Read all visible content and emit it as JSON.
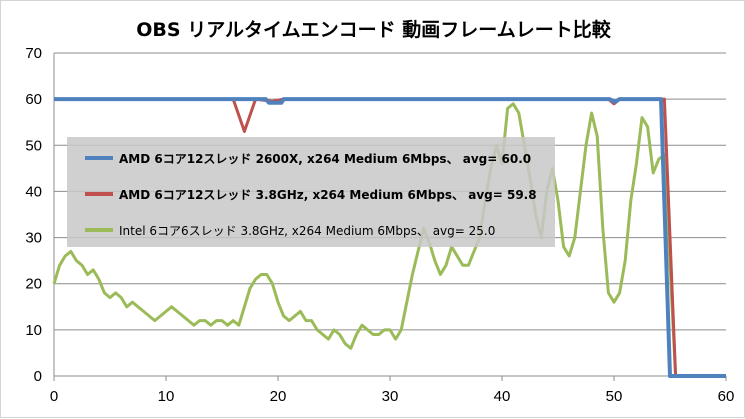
{
  "chart_data": {
    "type": "line",
    "title": "OBS リアルタイムエンコード 動画フレームレート比較",
    "xlim": [
      0,
      60
    ],
    "ylim": [
      0,
      70
    ],
    "xticks": [
      0,
      10,
      20,
      30,
      40,
      50,
      60
    ],
    "yticks": [
      0,
      10,
      20,
      30,
      40,
      50,
      60,
      70
    ],
    "grid": "horizontal",
    "legend_position": "upper-left-inside",
    "series": [
      {
        "name": "AMD 6コア12スレッド 2600X, x264 Medium 6Mbps、 avg= 60.0",
        "color": "#4f81bd",
        "points": [
          [
            0,
            60
          ],
          [
            18.9,
            60
          ],
          [
            19.2,
            59.2
          ],
          [
            20.3,
            59.2
          ],
          [
            20.5,
            60
          ],
          [
            49.6,
            60
          ],
          [
            50.1,
            59.4
          ],
          [
            50.5,
            60
          ],
          [
            54.2,
            60
          ],
          [
            55,
            0
          ],
          [
            60,
            0
          ]
        ]
      },
      {
        "name": "AMD 6コア12スレッド 3.8GHz, x264 Medium 6Mbps、 avg= 59.8",
        "color": "#c0504d",
        "points": [
          [
            0,
            60
          ],
          [
            16,
            60
          ],
          [
            17,
            53
          ],
          [
            18,
            60
          ],
          [
            19.5,
            59.5
          ],
          [
            20.5,
            60
          ],
          [
            49.5,
            60
          ],
          [
            50,
            59
          ],
          [
            50.5,
            60
          ],
          [
            54.5,
            60
          ],
          [
            55.5,
            0
          ],
          [
            60,
            0
          ]
        ]
      },
      {
        "name": "Intel 6コア6スレッド 3.8GHz, x264 Medium 6Mbps、 avg= 25.0",
        "color": "#9bbb59",
        "points": [
          [
            0,
            20
          ],
          [
            0.5,
            24
          ],
          [
            1,
            26
          ],
          [
            1.5,
            27
          ],
          [
            2,
            25
          ],
          [
            2.5,
            24
          ],
          [
            3,
            22
          ],
          [
            3.5,
            23
          ],
          [
            4,
            21
          ],
          [
            4.5,
            18
          ],
          [
            5,
            17
          ],
          [
            5.5,
            18
          ],
          [
            6,
            17
          ],
          [
            6.5,
            15
          ],
          [
            7,
            16
          ],
          [
            7.5,
            15
          ],
          [
            8,
            14
          ],
          [
            8.5,
            13
          ],
          [
            9,
            12
          ],
          [
            9.5,
            13
          ],
          [
            10,
            14
          ],
          [
            10.5,
            15
          ],
          [
            11,
            14
          ],
          [
            11.5,
            13
          ],
          [
            12,
            12
          ],
          [
            12.5,
            11
          ],
          [
            13,
            12
          ],
          [
            13.5,
            12
          ],
          [
            14,
            11
          ],
          [
            14.5,
            12
          ],
          [
            15,
            12
          ],
          [
            15.5,
            11
          ],
          [
            16,
            12
          ],
          [
            16.5,
            11
          ],
          [
            17,
            15
          ],
          [
            17.5,
            19
          ],
          [
            18,
            21
          ],
          [
            18.5,
            22
          ],
          [
            19,
            22
          ],
          [
            19.5,
            20
          ],
          [
            20,
            16
          ],
          [
            20.5,
            13
          ],
          [
            21,
            12
          ],
          [
            21.5,
            13
          ],
          [
            22,
            14
          ],
          [
            22.5,
            12
          ],
          [
            23,
            12
          ],
          [
            23.5,
            10
          ],
          [
            24,
            9
          ],
          [
            24.5,
            8
          ],
          [
            25,
            10
          ],
          [
            25.5,
            9
          ],
          [
            26,
            7
          ],
          [
            26.5,
            6
          ],
          [
            27,
            9
          ],
          [
            27.5,
            11
          ],
          [
            28,
            10
          ],
          [
            28.5,
            9
          ],
          [
            29,
            9
          ],
          [
            29.5,
            10
          ],
          [
            30,
            10
          ],
          [
            30.5,
            8
          ],
          [
            31,
            10
          ],
          [
            31.5,
            16
          ],
          [
            32,
            22
          ],
          [
            32.5,
            27
          ],
          [
            33,
            32
          ],
          [
            33.5,
            29
          ],
          [
            34,
            25
          ],
          [
            34.5,
            22
          ],
          [
            35,
            24
          ],
          [
            35.5,
            28
          ],
          [
            36,
            26
          ],
          [
            36.5,
            24
          ],
          [
            37,
            24
          ],
          [
            37.5,
            27
          ],
          [
            38,
            30
          ],
          [
            38.5,
            38
          ],
          [
            39,
            45
          ],
          [
            39.5,
            50
          ],
          [
            40,
            46
          ],
          [
            40.5,
            58
          ],
          [
            41,
            59
          ],
          [
            41.5,
            57
          ],
          [
            42,
            50
          ],
          [
            42.5,
            43
          ],
          [
            43,
            35
          ],
          [
            43.5,
            30
          ],
          [
            44,
            40
          ],
          [
            44.5,
            45
          ],
          [
            45,
            38
          ],
          [
            45.5,
            28
          ],
          [
            46,
            26
          ],
          [
            46.5,
            30
          ],
          [
            47,
            40
          ],
          [
            47.5,
            50
          ],
          [
            48,
            57
          ],
          [
            48.5,
            52
          ],
          [
            49,
            32
          ],
          [
            49.5,
            18
          ],
          [
            50,
            16
          ],
          [
            50.5,
            18
          ],
          [
            51,
            25
          ],
          [
            51.5,
            38
          ],
          [
            52,
            46
          ],
          [
            52.5,
            56
          ],
          [
            53,
            54
          ],
          [
            53.5,
            44
          ],
          [
            54,
            47
          ],
          [
            54.5,
            48
          ],
          [
            55.5,
            0
          ],
          [
            60,
            0
          ]
        ]
      }
    ]
  }
}
